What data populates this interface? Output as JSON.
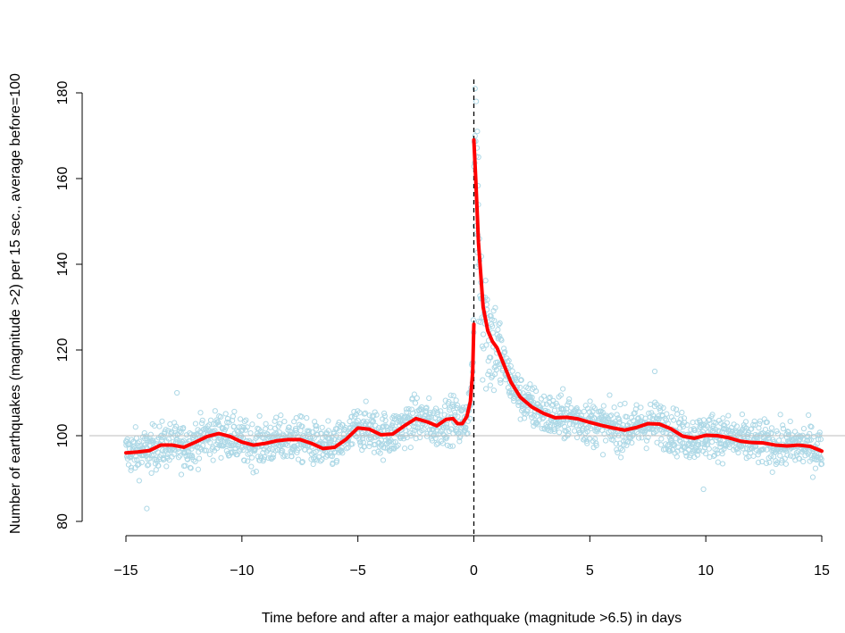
{
  "chart_data": {
    "type": "scatter",
    "title": "",
    "xlabel": "Time before and after a major eathquake (magnitude >6.5) in days",
    "ylabel": "Number of earthquakes (magnitude >2) per 15 sec., average before=100",
    "xlim": [
      -15,
      15
    ],
    "ylim": [
      80,
      180
    ],
    "x_ticks": [
      -15,
      -10,
      -5,
      0,
      5,
      10,
      15
    ],
    "x_tick_labels": [
      "−15",
      "−10",
      "−5",
      "0",
      "5",
      "10",
      "15"
    ],
    "y_ticks": [
      80,
      100,
      120,
      140,
      160,
      180
    ],
    "y_tick_labels": [
      "80",
      "100",
      "120",
      "140",
      "160",
      "180"
    ],
    "grid": false,
    "reference_lines": {
      "horizontal_y": 100,
      "vertical_x": 0
    },
    "colors": {
      "points": "#add8e6",
      "smooth": "#ff0000",
      "reference_h": "#bebebe",
      "reference_v": "#000000"
    },
    "series": [
      {
        "kind": "points",
        "description_level": "around 96-104 before the quake, spike near 180 at day 0, decay to ~100 by day 15",
        "outliers": [
          [
            -14.1,
            83
          ],
          [
            -12.8,
            110
          ],
          [
            0.05,
            181
          ],
          [
            0.1,
            178
          ],
          [
            0.15,
            171
          ],
          [
            0.2,
            165
          ],
          [
            7.8,
            115
          ],
          [
            9.9,
            87.5
          ]
        ]
      },
      {
        "kind": "smooth",
        "before": [
          [
            -15,
            96
          ],
          [
            -14.5,
            96.2
          ],
          [
            -14,
            96.5
          ],
          [
            -13.5,
            97.8
          ],
          [
            -13,
            97.8
          ],
          [
            -12.5,
            97.3
          ],
          [
            -12,
            98.5
          ],
          [
            -11.5,
            99.8
          ],
          [
            -11,
            100.5
          ],
          [
            -10.5,
            99.8
          ],
          [
            -10,
            98.5
          ],
          [
            -9.5,
            97.8
          ],
          [
            -9,
            98.2
          ],
          [
            -8.5,
            98.8
          ],
          [
            -8,
            99.1
          ],
          [
            -7.5,
            99.1
          ],
          [
            -7,
            98.2
          ],
          [
            -6.5,
            97.0
          ],
          [
            -6,
            97.3
          ],
          [
            -5.5,
            99.2
          ],
          [
            -5,
            101.8
          ],
          [
            -4.5,
            101.5
          ],
          [
            -4,
            100.2
          ],
          [
            -3.5,
            100.4
          ],
          [
            -3,
            102.3
          ],
          [
            -2.5,
            104.0
          ],
          [
            -2,
            103.2
          ],
          [
            -1.6,
            102.3
          ],
          [
            -1.2,
            103.8
          ],
          [
            -0.9,
            104.0
          ],
          [
            -0.7,
            102.8
          ],
          [
            -0.5,
            102.8
          ],
          [
            -0.3,
            104.5
          ],
          [
            -0.15,
            108
          ],
          [
            -0.05,
            115
          ],
          [
            0,
            126
          ]
        ],
        "after": [
          [
            0,
            169
          ],
          [
            0.08,
            160
          ],
          [
            0.2,
            145
          ],
          [
            0.4,
            130
          ],
          [
            0.6,
            124.5
          ],
          [
            0.8,
            122
          ],
          [
            1.0,
            120.5
          ],
          [
            1.3,
            116.5
          ],
          [
            1.6,
            112.5
          ],
          [
            2.0,
            109
          ],
          [
            2.5,
            106.7
          ],
          [
            3.0,
            105.2
          ],
          [
            3.5,
            104.2
          ],
          [
            4.0,
            104.3
          ],
          [
            4.5,
            103.9
          ],
          [
            5.0,
            103.1
          ],
          [
            5.5,
            102.4
          ],
          [
            6.0,
            101.8
          ],
          [
            6.5,
            101.3
          ],
          [
            7.0,
            101.9
          ],
          [
            7.5,
            102.8
          ],
          [
            8.0,
            102.7
          ],
          [
            8.5,
            101.6
          ],
          [
            9.0,
            99.9
          ],
          [
            9.5,
            99.4
          ],
          [
            10.0,
            100.1
          ],
          [
            10.5,
            100.0
          ],
          [
            11.0,
            99.5
          ],
          [
            11.5,
            98.7
          ],
          [
            12.0,
            98.4
          ],
          [
            12.5,
            98.3
          ],
          [
            13.0,
            97.8
          ],
          [
            13.5,
            97.6
          ],
          [
            14.0,
            97.8
          ],
          [
            14.5,
            97.5
          ],
          [
            15.0,
            96.4
          ]
        ]
      }
    ]
  }
}
